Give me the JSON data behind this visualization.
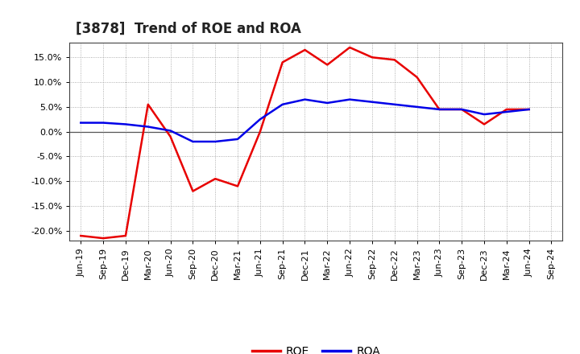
{
  "title": "[3878]  Trend of ROE and ROA",
  "x_labels": [
    "Jun-19",
    "Sep-19",
    "Dec-19",
    "Mar-20",
    "Jun-20",
    "Sep-20",
    "Dec-20",
    "Mar-21",
    "Jun-21",
    "Sep-21",
    "Dec-21",
    "Mar-22",
    "Jun-22",
    "Sep-22",
    "Dec-22",
    "Mar-23",
    "Jun-23",
    "Sep-23",
    "Dec-23",
    "Mar-24",
    "Jun-24",
    "Sep-24"
  ],
  "roe": [
    -21.0,
    -21.5,
    -21.0,
    5.5,
    -1.0,
    -12.0,
    -9.5,
    -11.0,
    0.0,
    14.0,
    16.5,
    13.5,
    17.0,
    15.0,
    14.5,
    11.0,
    4.5,
    4.5,
    1.5,
    4.5,
    4.5,
    null
  ],
  "roa": [
    1.8,
    1.8,
    1.5,
    1.0,
    0.2,
    -2.0,
    -2.0,
    -1.5,
    2.5,
    5.5,
    6.5,
    5.8,
    6.5,
    6.0,
    5.5,
    5.0,
    4.5,
    4.5,
    3.5,
    4.0,
    4.5,
    null
  ],
  "roe_color": "#e80000",
  "roa_color": "#0000e8",
  "ylim": [
    -22,
    18
  ],
  "yticks": [
    -20.0,
    -15.0,
    -10.0,
    -5.0,
    0.0,
    5.0,
    10.0,
    15.0
  ],
  "bg_color": "#ffffff",
  "grid_color": "#999999",
  "legend_labels": [
    "ROE",
    "ROA"
  ],
  "title_fontsize": 12,
  "tick_fontsize": 8
}
